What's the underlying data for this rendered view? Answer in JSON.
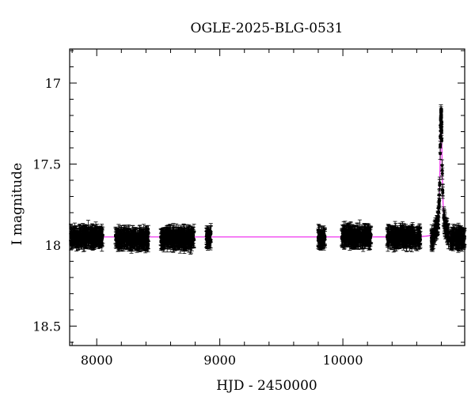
{
  "chart_data": {
    "type": "scatter",
    "title": "OGLE-2025-BLG-0531",
    "xlabel": "HJD - 2450000",
    "ylabel": "I magnitude",
    "xlim": [
      7780,
      10990
    ],
    "ylim": [
      18.62,
      16.79
    ],
    "y_inverted": true,
    "x_ticks": [
      8000,
      9000,
      10000
    ],
    "y_ticks": [
      17,
      17.5,
      18,
      18.5
    ],
    "grid": false,
    "legend": "none",
    "colors": {
      "points": "#000000",
      "model": "#ee22ee"
    },
    "baseline_mag": 17.95,
    "errorbar_mag": 0.05,
    "observing_seasons": [
      {
        "x_start": 7790,
        "x_end": 8050,
        "mean": 17.95
      },
      {
        "x_start": 8150,
        "x_end": 8420,
        "mean": 17.96
      },
      {
        "x_start": 8520,
        "x_end": 8790,
        "mean": 17.96
      },
      {
        "x_start": 8890,
        "x_end": 8930,
        "mean": 17.95
      },
      {
        "x_start": 9800,
        "x_end": 9855,
        "mean": 17.96
      },
      {
        "x_start": 9990,
        "x_end": 10230,
        "mean": 17.95
      },
      {
        "x_start": 10360,
        "x_end": 10630,
        "mean": 17.95
      },
      {
        "x_start": 10720,
        "x_end": 10990,
        "mean": 17.96
      }
    ],
    "event": {
      "t0": 10798,
      "peak_mag": 17.18,
      "width_days": 10
    },
    "series": [
      {
        "name": "",
        "kind": "points"
      },
      {
        "name": "",
        "kind": "model_line"
      }
    ]
  }
}
